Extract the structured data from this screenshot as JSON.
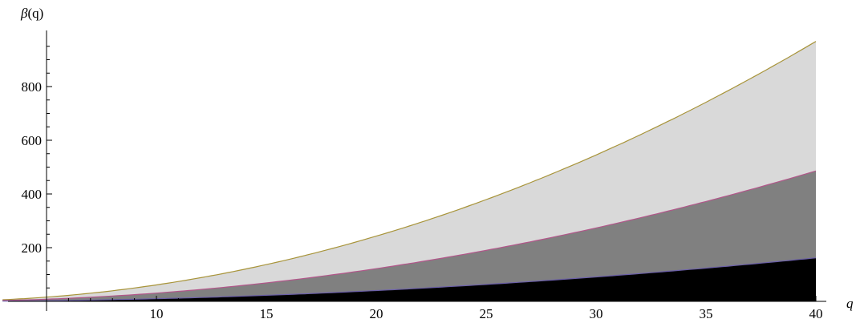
{
  "chart_data": {
    "type": "area",
    "title": "",
    "xlabel": "q",
    "ylabel": "β(q)",
    "xlim": [
      5,
      40
    ],
    "ylim": [
      0,
      980
    ],
    "x_ticks": [
      10,
      15,
      20,
      25,
      30,
      35,
      40
    ],
    "y_ticks": [
      200,
      400,
      600,
      800
    ],
    "x_minor_step": 1,
    "y_minor_step": 50,
    "grid": false,
    "legend": "none",
    "series": [
      {
        "fill": "#000000",
        "stroke": "#6b5fa8",
        "x": [
          3,
          5,
          10,
          15,
          20,
          25,
          30,
          35,
          40
        ],
        "values": [
          1,
          2,
          10,
          23,
          40,
          63,
          91,
          124,
          162
        ]
      },
      {
        "fill": "#808080",
        "stroke": "#b2568a",
        "x": [
          3,
          5,
          10,
          15,
          20,
          25,
          30,
          35,
          40
        ],
        "values": [
          3,
          8,
          31,
          69,
          122,
          190,
          273,
          372,
          486
        ]
      },
      {
        "fill": "#d9d9d9",
        "stroke": "#a8943a",
        "x": [
          3,
          5,
          10,
          15,
          20,
          25,
          30,
          35,
          40
        ],
        "values": [
          6,
          16,
          61,
          137,
          243,
          379,
          545,
          742,
          968
        ]
      }
    ]
  }
}
